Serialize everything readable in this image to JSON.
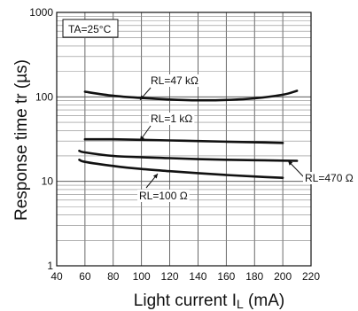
{
  "chart_data": {
    "type": "line",
    "xlabel": "Light current I",
    "xlabel_sub": "L",
    "xlabel_unit": " (mA)",
    "ylabel": "Response time tr (µs)",
    "x_ticks": [
      40,
      60,
      80,
      100,
      120,
      140,
      160,
      180,
      200,
      220
    ],
    "y_ticks": [
      1,
      10,
      100,
      1000
    ],
    "xlim": [
      40,
      220
    ],
    "ylim": [
      1,
      1000
    ],
    "y_scale": "log",
    "grid": true,
    "condition": "TA=25°C",
    "series": [
      {
        "name": "RL=47 kΩ",
        "x": [
          60,
          80,
          100,
          120,
          140,
          160,
          180,
          200,
          210
        ],
        "y": [
          115,
          103,
          97,
          93,
          91,
          92,
          96,
          106,
          118
        ]
      },
      {
        "name": "RL=1 kΩ",
        "x": [
          60,
          80,
          100,
          120,
          140,
          160,
          180,
          200
        ],
        "y": [
          31.5,
          31.5,
          31,
          30.5,
          30,
          29.5,
          29,
          28.5
        ]
      },
      {
        "name": "RL=470 Ω",
        "x": [
          56,
          60,
          80,
          100,
          120,
          140,
          160,
          180,
          200,
          210
        ],
        "y": [
          23,
          22,
          20,
          19.3,
          18.8,
          18.3,
          18,
          17.8,
          17.6,
          17.5
        ]
      },
      {
        "name": "RL=100 Ω",
        "x": [
          56,
          60,
          80,
          100,
          120,
          140,
          160,
          180,
          200
        ],
        "y": [
          18,
          17,
          15.2,
          14,
          13.2,
          12.5,
          11.9,
          11.4,
          11
        ]
      }
    ]
  }
}
